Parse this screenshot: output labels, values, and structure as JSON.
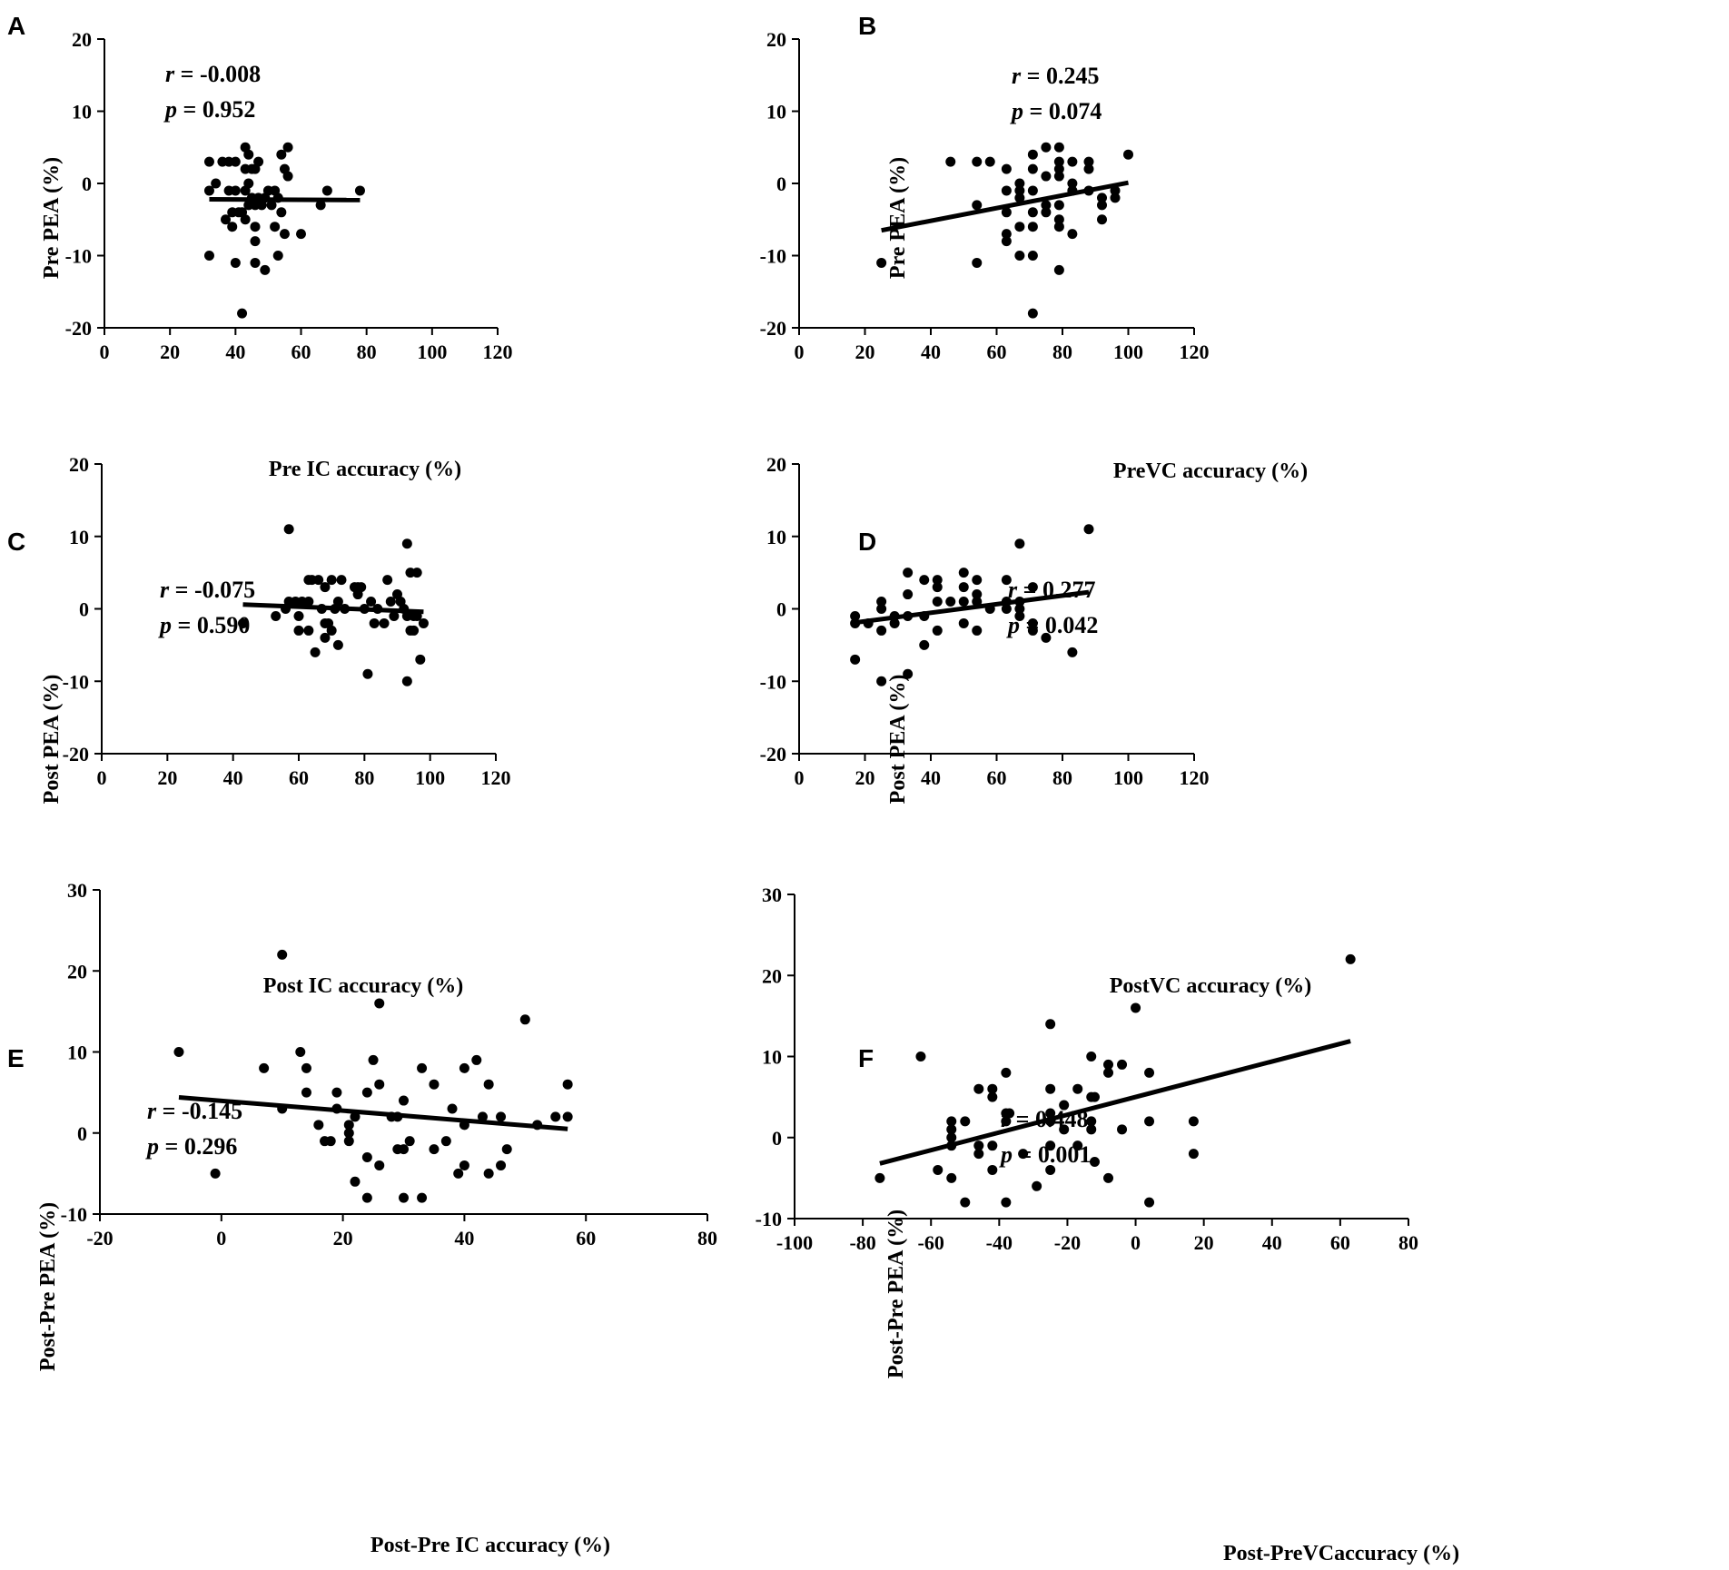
{
  "chart_data": [
    {
      "type": "scatter",
      "panel": "A",
      "xlabel": "Pre  IC accuracy (%)",
      "ylabel": "Pre PEA (%)",
      "xlim": [
        0,
        120
      ],
      "ylim": [
        -20,
        20
      ],
      "xticks": [
        0,
        20,
        40,
        60,
        80,
        100,
        120
      ],
      "yticks": [
        -20,
        -10,
        0,
        10,
        20
      ],
      "stats": {
        "r_label": "r",
        "r_value": " = -0.008",
        "p_label": "p",
        "p_value": " = 0.952"
      },
      "fit": {
        "x": [
          32,
          78
        ],
        "y": [
          -2.2,
          -2.3
        ]
      },
      "points": [
        [
          32,
          3
        ],
        [
          32,
          -1
        ],
        [
          32,
          -10
        ],
        [
          34,
          0
        ],
        [
          36,
          3
        ],
        [
          37,
          -5
        ],
        [
          38,
          3
        ],
        [
          38,
          -1
        ],
        [
          39,
          -6
        ],
        [
          39,
          -4
        ],
        [
          40,
          3
        ],
        [
          40,
          -11
        ],
        [
          40,
          -1
        ],
        [
          41,
          -4
        ],
        [
          42,
          -18
        ],
        [
          42,
          -4
        ],
        [
          43,
          5
        ],
        [
          43,
          2
        ],
        [
          43,
          -1
        ],
        [
          43,
          -5
        ],
        [
          44,
          4
        ],
        [
          44,
          0
        ],
        [
          44,
          -3
        ],
        [
          45,
          2
        ],
        [
          45,
          -2
        ],
        [
          46,
          -3
        ],
        [
          46,
          2
        ],
        [
          46,
          -6
        ],
        [
          46,
          -8
        ],
        [
          46,
          -11
        ],
        [
          47,
          -2
        ],
        [
          47,
          3
        ],
        [
          48,
          -3
        ],
        [
          49,
          -2
        ],
        [
          49,
          -12
        ],
        [
          50,
          -1
        ],
        [
          51,
          -3
        ],
        [
          52,
          -1
        ],
        [
          52,
          -6
        ],
        [
          53,
          -10
        ],
        [
          53,
          -2
        ],
        [
          54,
          4
        ],
        [
          54,
          -4
        ],
        [
          55,
          2
        ],
        [
          55,
          -7
        ],
        [
          56,
          5
        ],
        [
          56,
          1
        ],
        [
          60,
          -7
        ],
        [
          66,
          -3
        ],
        [
          68,
          -1
        ],
        [
          78,
          -1
        ]
      ]
    },
    {
      "type": "scatter",
      "panel": "B",
      "xlabel": "PreVC accuracy (%)",
      "ylabel": "Pre PEA (%)",
      "xlim": [
        0,
        120
      ],
      "ylim": [
        -20,
        20
      ],
      "xticks": [
        0,
        20,
        40,
        60,
        80,
        100,
        120
      ],
      "yticks": [
        -20,
        -10,
        0,
        10,
        20
      ],
      "stats": {
        "r_label": "r",
        "r_value": " = 0.245",
        "p_label": "p",
        "p_value": " = 0.074"
      },
      "fit": {
        "x": [
          25,
          100
        ],
        "y": [
          -6.5,
          0.1
        ]
      },
      "points": [
        [
          25,
          -11
        ],
        [
          46,
          3
        ],
        [
          54,
          3
        ],
        [
          54,
          -3
        ],
        [
          54,
          -11
        ],
        [
          58,
          3
        ],
        [
          63,
          2
        ],
        [
          63,
          -1
        ],
        [
          63,
          -4
        ],
        [
          63,
          -7
        ],
        [
          63,
          -8
        ],
        [
          67,
          0
        ],
        [
          67,
          -1
        ],
        [
          67,
          -2
        ],
        [
          67,
          -6
        ],
        [
          67,
          -10
        ],
        [
          71,
          4
        ],
        [
          71,
          2
        ],
        [
          71,
          -1
        ],
        [
          71,
          -4
        ],
        [
          71,
          -6
        ],
        [
          71,
          -10
        ],
        [
          71,
          -18
        ],
        [
          75,
          5
        ],
        [
          75,
          1
        ],
        [
          75,
          -3
        ],
        [
          75,
          -4
        ],
        [
          79,
          5
        ],
        [
          79,
          3
        ],
        [
          79,
          2
        ],
        [
          79,
          1
        ],
        [
          79,
          -3
        ],
        [
          79,
          -5
        ],
        [
          79,
          -6
        ],
        [
          79,
          -12
        ],
        [
          83,
          3
        ],
        [
          83,
          0
        ],
        [
          83,
          -1
        ],
        [
          83,
          -7
        ],
        [
          88,
          3
        ],
        [
          88,
          2
        ],
        [
          88,
          -1
        ],
        [
          92,
          -2
        ],
        [
          92,
          -3
        ],
        [
          92,
          -5
        ],
        [
          96,
          -1
        ],
        [
          96,
          -2
        ],
        [
          100,
          4
        ]
      ]
    },
    {
      "type": "scatter",
      "panel": "C",
      "xlabel": "Post  IC accuracy (%)",
      "ylabel": "Post PEA (%)",
      "xlim": [
        0,
        120
      ],
      "ylim": [
        -20,
        20
      ],
      "xticks": [
        0,
        20,
        40,
        60,
        80,
        100,
        120
      ],
      "yticks": [
        -20,
        -10,
        0,
        10,
        20
      ],
      "stats": {
        "r_label": "r",
        "r_value": " = -0.075",
        "p_label": "p",
        "p_value": " = 0.590"
      },
      "fit": {
        "x": [
          43,
          98
        ],
        "y": [
          0.6,
          -0.4
        ]
      },
      "points": [
        [
          43,
          -2
        ],
        [
          53,
          -1
        ],
        [
          56,
          0
        ],
        [
          57,
          11
        ],
        [
          57,
          1
        ],
        [
          59,
          1
        ],
        [
          60,
          -1
        ],
        [
          60,
          -3
        ],
        [
          61,
          1
        ],
        [
          63,
          4
        ],
        [
          63,
          1
        ],
        [
          63,
          -3
        ],
        [
          64,
          4
        ],
        [
          65,
          -6
        ],
        [
          66,
          4
        ],
        [
          67,
          0
        ],
        [
          68,
          3
        ],
        [
          68,
          -2
        ],
        [
          68,
          -4
        ],
        [
          69,
          -2
        ],
        [
          70,
          4
        ],
        [
          70,
          -3
        ],
        [
          71,
          0
        ],
        [
          72,
          1
        ],
        [
          72,
          -5
        ],
        [
          73,
          4
        ],
        [
          74,
          0
        ],
        [
          77,
          3
        ],
        [
          78,
          3
        ],
        [
          78,
          2
        ],
        [
          79,
          3
        ],
        [
          80,
          0
        ],
        [
          81,
          -9
        ],
        [
          82,
          1
        ],
        [
          83,
          -2
        ],
        [
          84,
          0
        ],
        [
          86,
          -2
        ],
        [
          87,
          4
        ],
        [
          88,
          1
        ],
        [
          89,
          -1
        ],
        [
          90,
          2
        ],
        [
          91,
          1
        ],
        [
          92,
          0
        ],
        [
          93,
          9
        ],
        [
          93,
          -1
        ],
        [
          93,
          -10
        ],
        [
          94,
          5
        ],
        [
          94,
          -3
        ],
        [
          95,
          -1
        ],
        [
          95,
          -3
        ],
        [
          96,
          5
        ],
        [
          96,
          -1
        ],
        [
          97,
          -7
        ],
        [
          98,
          -2
        ]
      ]
    },
    {
      "type": "scatter",
      "panel": "D",
      "xlabel": "PostVC accuracy (%)",
      "ylabel": "Post PEA (%)",
      "xlim": [
        0,
        120
      ],
      "ylim": [
        -20,
        20
      ],
      "xticks": [
        0,
        20,
        40,
        60,
        80,
        100,
        120
      ],
      "yticks": [
        -20,
        -10,
        0,
        10,
        20
      ],
      "stats": {
        "r_label": "r",
        "r_value": " = 0.277",
        "p_label": "p",
        "p_value": " = 0.042"
      },
      "fit": {
        "x": [
          17,
          88
        ],
        "y": [
          -1.9,
          2.3
        ]
      },
      "points": [
        [
          17,
          -1
        ],
        [
          17,
          -2
        ],
        [
          17,
          -7
        ],
        [
          21,
          -2
        ],
        [
          25,
          1
        ],
        [
          25,
          0
        ],
        [
          25,
          -3
        ],
        [
          25,
          -10
        ],
        [
          29,
          -1
        ],
        [
          29,
          -2
        ],
        [
          33,
          5
        ],
        [
          33,
          2
        ],
        [
          33,
          -1
        ],
        [
          33,
          -9
        ],
        [
          38,
          4
        ],
        [
          38,
          -1
        ],
        [
          38,
          -5
        ],
        [
          42,
          4
        ],
        [
          42,
          3
        ],
        [
          42,
          1
        ],
        [
          42,
          -3
        ],
        [
          46,
          1
        ],
        [
          50,
          5
        ],
        [
          50,
          3
        ],
        [
          50,
          1
        ],
        [
          50,
          -2
        ],
        [
          54,
          4
        ],
        [
          54,
          2
        ],
        [
          54,
          1
        ],
        [
          54,
          -3
        ],
        [
          58,
          0
        ],
        [
          63,
          4
        ],
        [
          63,
          1
        ],
        [
          63,
          0
        ],
        [
          67,
          9
        ],
        [
          67,
          1
        ],
        [
          67,
          0
        ],
        [
          67,
          -1
        ],
        [
          71,
          3
        ],
        [
          71,
          -2
        ],
        [
          71,
          -3
        ],
        [
          75,
          -4
        ],
        [
          83,
          -6
        ],
        [
          88,
          11
        ]
      ]
    },
    {
      "type": "scatter",
      "panel": "E",
      "xlabel": "Post-Pre  IC accuracy (%)",
      "ylabel": "Post-Pre PEA (%)",
      "xlim": [
        -20,
        80
      ],
      "ylim": [
        -10,
        30
      ],
      "xticks": [
        -20,
        0,
        20,
        40,
        60,
        80
      ],
      "yticks": [
        -10,
        0,
        10,
        20,
        30
      ],
      "stats": {
        "r_label": "r",
        "r_value": " = -0.145",
        "p_label": "p",
        "p_value": " = 0.296"
      },
      "fit": {
        "x": [
          -7,
          57
        ],
        "y": [
          4.4,
          0.5
        ]
      },
      "points": [
        [
          -7,
          10
        ],
        [
          -1,
          -5
        ],
        [
          7,
          8
        ],
        [
          10,
          22
        ],
        [
          10,
          3
        ],
        [
          13,
          10
        ],
        [
          14,
          8
        ],
        [
          14,
          5
        ],
        [
          16,
          1
        ],
        [
          17,
          -1
        ],
        [
          18,
          -1
        ],
        [
          19,
          5
        ],
        [
          19,
          3
        ],
        [
          21,
          1
        ],
        [
          21,
          0
        ],
        [
          21,
          -1
        ],
        [
          22,
          2
        ],
        [
          22,
          -6
        ],
        [
          24,
          5
        ],
        [
          24,
          -3
        ],
        [
          24,
          -8
        ],
        [
          25,
          9
        ],
        [
          26,
          16
        ],
        [
          26,
          6
        ],
        [
          26,
          -4
        ],
        [
          28,
          2
        ],
        [
          29,
          2
        ],
        [
          29,
          -2
        ],
        [
          30,
          4
        ],
        [
          30,
          -2
        ],
        [
          30,
          -8
        ],
        [
          31,
          -1
        ],
        [
          33,
          8
        ],
        [
          33,
          -8
        ],
        [
          35,
          6
        ],
        [
          35,
          -2
        ],
        [
          37,
          -1
        ],
        [
          38,
          3
        ],
        [
          39,
          -5
        ],
        [
          40,
          8
        ],
        [
          40,
          1
        ],
        [
          40,
          -4
        ],
        [
          42,
          9
        ],
        [
          43,
          2
        ],
        [
          44,
          6
        ],
        [
          44,
          -5
        ],
        [
          46,
          2
        ],
        [
          46,
          -4
        ],
        [
          47,
          -2
        ],
        [
          50,
          14
        ],
        [
          52,
          1
        ],
        [
          55,
          2
        ],
        [
          57,
          6
        ],
        [
          57,
          2
        ]
      ]
    },
    {
      "type": "scatter",
      "panel": "F",
      "xlabel": "Post-PreVCaccuracy (%)",
      "ylabel": "Post-Pre PEA (%)",
      "xlim": [
        -100,
        80
      ],
      "ylim": [
        -10,
        30
      ],
      "xticks": [
        -100,
        -80,
        -60,
        -40,
        -20,
        0,
        20,
        40,
        60,
        80
      ],
      "yticks": [
        -10,
        0,
        10,
        20,
        30
      ],
      "stats": {
        "r_label": "r",
        "r_value": " = 0.448",
        "p_label": "p",
        "p_value": " = 0.001"
      },
      "fit": {
        "x": [
          -75,
          63
        ],
        "y": [
          -3.2,
          11.9
        ]
      },
      "points": [
        [
          -75,
          -5
        ],
        [
          -63,
          10
        ],
        [
          -58,
          -4
        ],
        [
          -54,
          2
        ],
        [
          -54,
          1
        ],
        [
          -54,
          0
        ],
        [
          -54,
          -1
        ],
        [
          -54,
          -5
        ],
        [
          -50,
          2
        ],
        [
          -50,
          -8
        ],
        [
          -46,
          6
        ],
        [
          -46,
          -1
        ],
        [
          -46,
          -2
        ],
        [
          -42,
          6
        ],
        [
          -42,
          5
        ],
        [
          -42,
          -1
        ],
        [
          -42,
          -4
        ],
        [
          -38,
          8
        ],
        [
          -38,
          3
        ],
        [
          -38,
          2
        ],
        [
          -38,
          -8
        ],
        [
          -37,
          3
        ],
        [
          -33,
          -2
        ],
        [
          -29,
          -6
        ],
        [
          -25,
          14
        ],
        [
          -25,
          6
        ],
        [
          -25,
          3
        ],
        [
          -25,
          2
        ],
        [
          -25,
          -1
        ],
        [
          -25,
          -4
        ],
        [
          -21,
          4
        ],
        [
          -21,
          1
        ],
        [
          -17,
          6
        ],
        [
          -17,
          -1
        ],
        [
          -13,
          10
        ],
        [
          -13,
          5
        ],
        [
          -13,
          2
        ],
        [
          -13,
          1
        ],
        [
          -12,
          5
        ],
        [
          -12,
          -3
        ],
        [
          -8,
          9
        ],
        [
          -8,
          8
        ],
        [
          -8,
          -5
        ],
        [
          -4,
          9
        ],
        [
          -4,
          1
        ],
        [
          0,
          16
        ],
        [
          4,
          8
        ],
        [
          4,
          2
        ],
        [
          4,
          -8
        ],
        [
          17,
          2
        ],
        [
          17,
          -2
        ],
        [
          63,
          22
        ]
      ]
    }
  ]
}
